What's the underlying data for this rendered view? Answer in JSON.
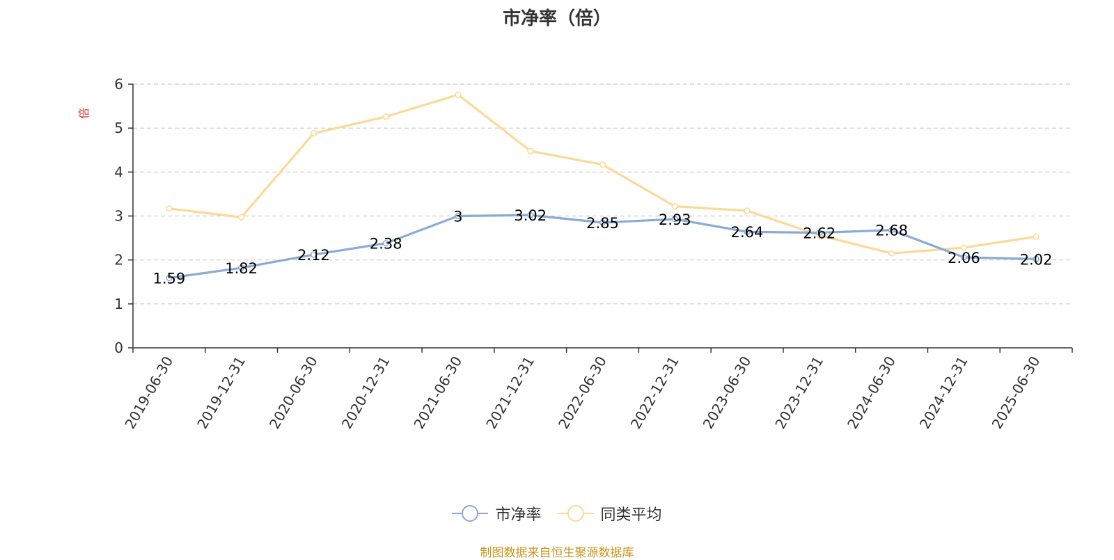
{
  "title": "市净率（倍）",
  "chart_data": {
    "type": "line",
    "categories": [
      "2019-06-30",
      "2019-12-31",
      "2020-06-30",
      "2020-12-31",
      "2021-06-30",
      "2021-12-31",
      "2022-06-30",
      "2022-12-31",
      "2023-06-30",
      "2023-12-31",
      "2024-06-30",
      "2024-12-31",
      "2025-06-30"
    ],
    "series": [
      {
        "name": "市净率",
        "color": "#8aaad6",
        "values": [
          1.59,
          1.82,
          2.12,
          2.38,
          3,
          3.02,
          2.85,
          2.93,
          2.64,
          2.62,
          2.68,
          2.06,
          2.02
        ],
        "labels": [
          "1.59",
          "1.82",
          "2.12",
          "2.38",
          "3",
          "3.02",
          "2.85",
          "2.93",
          "2.64",
          "2.62",
          "2.68",
          "2.06",
          "2.02"
        ]
      },
      {
        "name": "同类平均",
        "color": "#fcd996",
        "values": [
          3.17,
          2.97,
          4.88,
          5.26,
          5.76,
          4.48,
          4.17,
          3.22,
          3.12,
          2.56,
          2.15,
          2.28,
          2.53
        ]
      }
    ],
    "ylabel": "倍",
    "ylim": [
      0,
      6
    ],
    "yticks": [
      0,
      1,
      2,
      3,
      4,
      5,
      6
    ],
    "grid": true,
    "legend": "bottom"
  },
  "source": "制图数据来自恒生聚源数据库"
}
